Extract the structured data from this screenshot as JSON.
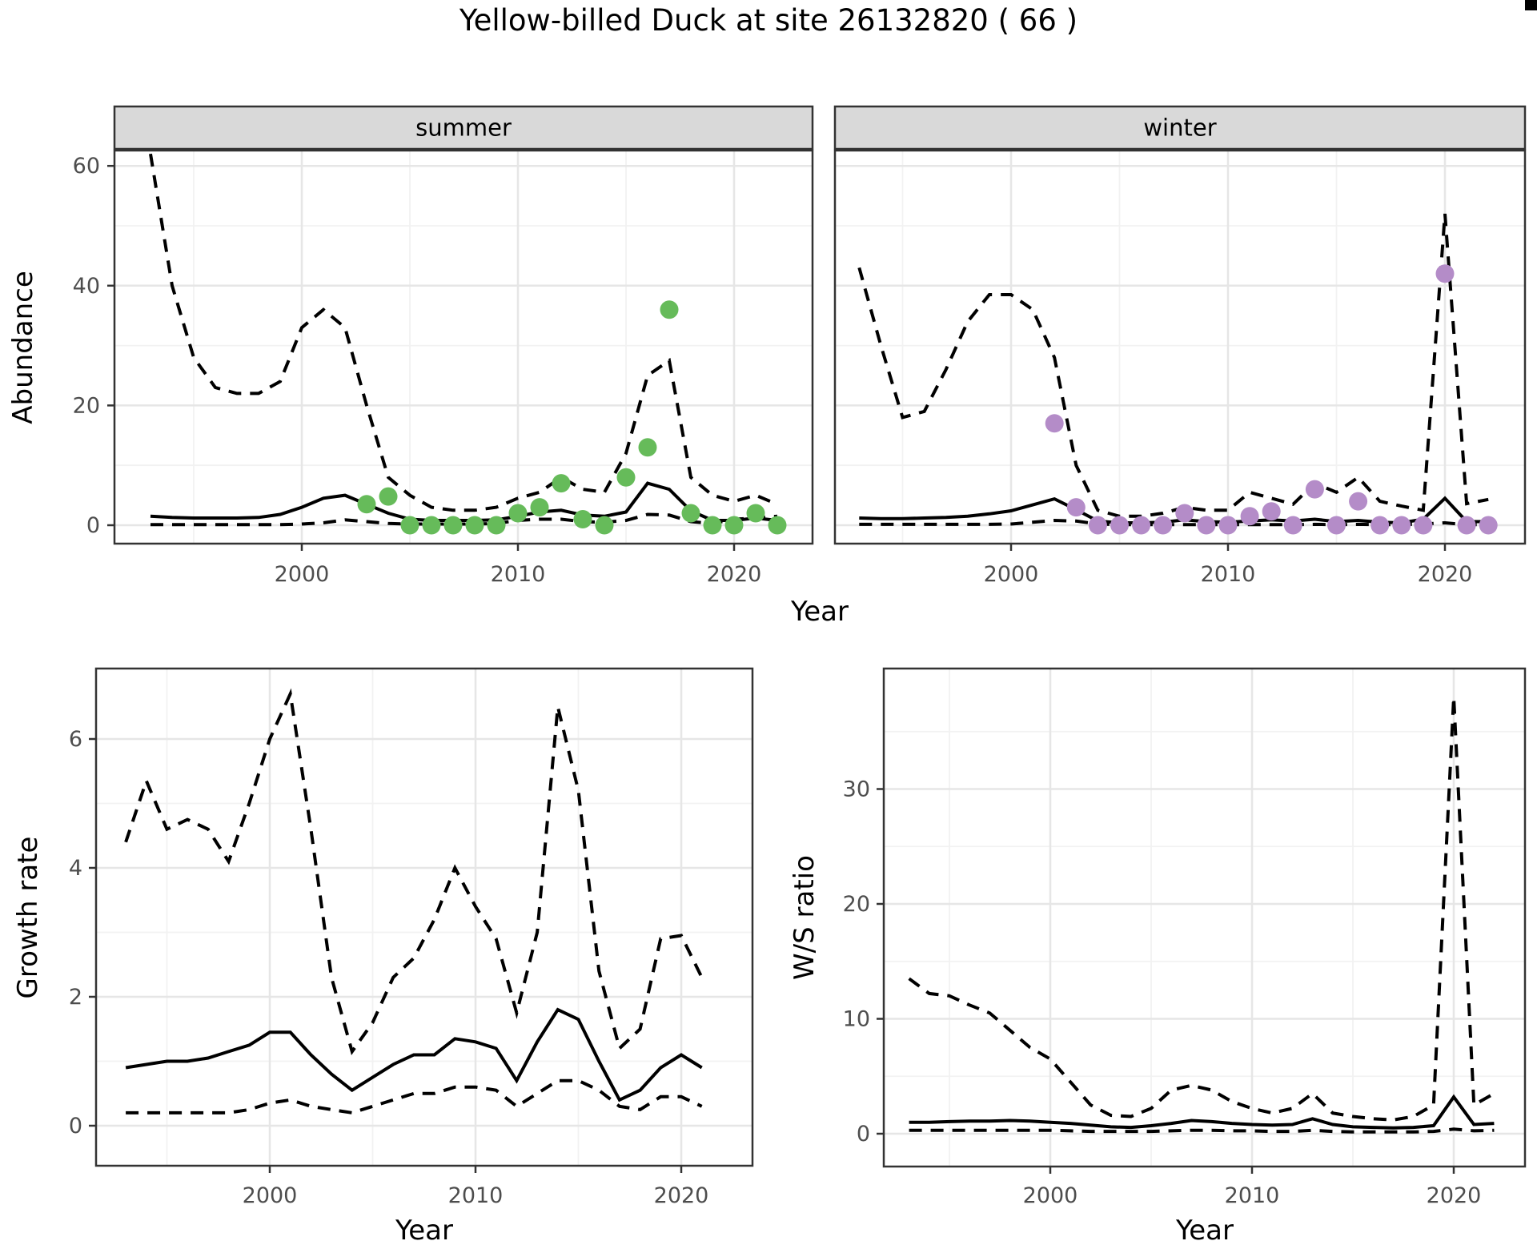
{
  "title": "Yellow-billed Duck at site 26132820 ( 66 )",
  "axis_labels": {
    "abundance": "Abundance",
    "year": "Year",
    "growth_rate": "Growth rate",
    "ws_ratio": "W/S ratio"
  },
  "facets": {
    "summer": "summer",
    "winter": "winter"
  },
  "colors": {
    "summer_point": "#66BB5A",
    "winter_point": "#B48CC8",
    "line": "#000000",
    "strip_bg": "#D9D9D9",
    "panel_border": "#333333",
    "grid_major": "#E6E6E6",
    "grid_minor": "#F2F2F2",
    "tick_label": "#4D4D4D"
  },
  "chart_data": [
    {
      "id": "abundance-summer",
      "type": "line",
      "facet_label": "summer",
      "ylabel": "Abundance",
      "xlabel": "Year",
      "x": [
        1993,
        1994,
        1995,
        1996,
        1997,
        1998,
        1999,
        2000,
        2001,
        2002,
        2003,
        2004,
        2005,
        2006,
        2007,
        2008,
        2009,
        2010,
        2011,
        2012,
        2013,
        2014,
        2015,
        2016,
        2017,
        2018,
        2019,
        2020,
        2021,
        2022
      ],
      "series": [
        {
          "name": "upper_95ci",
          "style": "dashed",
          "values": [
            62,
            40,
            28,
            23,
            22,
            22,
            24,
            33,
            36,
            33,
            20,
            8,
            5,
            3,
            2.5,
            2.5,
            3,
            4.5,
            5.5,
            8,
            6,
            5.5,
            12,
            25,
            27.5,
            8,
            5,
            4,
            5,
            3.5
          ]
        },
        {
          "name": "median",
          "style": "solid",
          "values": [
            1.5,
            1.3,
            1.2,
            1.2,
            1.2,
            1.3,
            1.8,
            3,
            4.5,
            5,
            3.5,
            2,
            1,
            0.8,
            0.8,
            0.8,
            0.9,
            1.5,
            2.2,
            2.5,
            1.7,
            1.5,
            2.2,
            7,
            6,
            2.4,
            0.8,
            0.8,
            1.2,
            0.8
          ]
        },
        {
          "name": "lower_95ci",
          "style": "dashed",
          "values": [
            0.1,
            0.1,
            0.1,
            0.1,
            0.1,
            0.1,
            0.1,
            0.2,
            0.4,
            0.9,
            0.6,
            0.3,
            0.2,
            0.2,
            0.2,
            0.2,
            0.3,
            0.8,
            1,
            1,
            0.6,
            0.5,
            0.8,
            1.8,
            1.7,
            0.6,
            0.3,
            1,
            1.2,
            1.5
          ]
        }
      ],
      "points": {
        "name": "observed-summer-counts",
        "color": "#66BB5A",
        "x": [
          2003,
          2004,
          2005,
          2006,
          2007,
          2008,
          2009,
          2010,
          2011,
          2012,
          2013,
          2014,
          2015,
          2016,
          2017,
          2018,
          2019,
          2020,
          2021,
          2022
        ],
        "y": [
          3.5,
          4.8,
          0,
          0,
          0,
          0,
          0,
          2,
          3,
          7,
          1,
          0,
          8,
          13,
          36,
          2,
          0,
          0,
          2,
          0
        ]
      },
      "yticks": [
        0,
        20,
        40,
        60
      ],
      "xticks": [
        2000,
        2010,
        2020
      ],
      "ylim": [
        0,
        62
      ],
      "grid": true,
      "legend": "none"
    },
    {
      "id": "abundance-winter",
      "type": "line",
      "facet_label": "winter",
      "ylabel": "Abundance",
      "xlabel": "Year",
      "x": [
        1993,
        1994,
        1995,
        1996,
        1997,
        1998,
        1999,
        2000,
        2001,
        2002,
        2003,
        2004,
        2005,
        2006,
        2007,
        2008,
        2009,
        2010,
        2011,
        2012,
        2013,
        2014,
        2015,
        2016,
        2017,
        2018,
        2019,
        2020,
        2021,
        2022
      ],
      "series": [
        {
          "name": "upper_95ci",
          "style": "dashed",
          "values": [
            43,
            30,
            18,
            19,
            26,
            34,
            38.5,
            38.5,
            36,
            28,
            10,
            2.5,
            1.5,
            1.5,
            2,
            3,
            2.5,
            2.5,
            5.5,
            4.5,
            3.5,
            7,
            5.5,
            8,
            4,
            3.2,
            2.5,
            52,
            3.6,
            4.3
          ]
        },
        {
          "name": "median",
          "style": "solid",
          "values": [
            1.2,
            1.1,
            1.1,
            1.2,
            1.3,
            1.5,
            1.9,
            2.4,
            3.4,
            4.4,
            2.6,
            0.7,
            0.4,
            0.4,
            0.5,
            0.9,
            0.6,
            0.5,
            0.7,
            0.9,
            0.7,
            1.0,
            0.6,
            0.8,
            0.5,
            0.4,
            1.0,
            4.5,
            0.6,
            0.6
          ]
        },
        {
          "name": "lower_95ci",
          "style": "dashed",
          "values": [
            0.15,
            0.15,
            0.15,
            0.15,
            0.15,
            0.15,
            0.15,
            0.2,
            0.5,
            0.8,
            0.7,
            0.2,
            0.1,
            0.1,
            0.1,
            0.1,
            0.1,
            0.1,
            0.1,
            0.1,
            0.1,
            0.15,
            0.1,
            0.15,
            0.1,
            0.1,
            0.2,
            0.4,
            0.1,
            0.1
          ]
        }
      ],
      "points": {
        "name": "observed-winter-counts",
        "color": "#B48CC8",
        "x": [
          2002,
          2003,
          2004,
          2005,
          2006,
          2007,
          2008,
          2009,
          2010,
          2011,
          2012,
          2013,
          2014,
          2015,
          2016,
          2017,
          2018,
          2019,
          2020,
          2021,
          2022
        ],
        "y": [
          17,
          3,
          0,
          0,
          0,
          0,
          2,
          0,
          0,
          1.5,
          2.3,
          0,
          6,
          0,
          4,
          0,
          0,
          0,
          42,
          0,
          0
        ]
      },
      "yticks": [
        0,
        20,
        40,
        60
      ],
      "xticks": [
        2000,
        2010,
        2020
      ],
      "ylim": [
        0,
        62
      ],
      "grid": true,
      "legend": "none"
    },
    {
      "id": "growth-rate",
      "type": "line",
      "facet_label": null,
      "ylabel": "Growth rate",
      "xlabel": "Year",
      "x": [
        1993,
        1994,
        1995,
        1996,
        1997,
        1998,
        1999,
        2000,
        2001,
        2002,
        2003,
        2004,
        2005,
        2006,
        2007,
        2008,
        2009,
        2010,
        2011,
        2012,
        2013,
        2014,
        2015,
        2016,
        2017,
        2018,
        2019,
        2020,
        2021
      ],
      "series": [
        {
          "name": "upper_95ci",
          "style": "dashed",
          "values": [
            4.4,
            5.35,
            4.6,
            4.75,
            4.6,
            4.1,
            5.0,
            6.0,
            6.7,
            4.6,
            2.3,
            1.15,
            1.6,
            2.3,
            2.6,
            3.2,
            4.0,
            3.4,
            2.9,
            1.75,
            3.0,
            6.5,
            5.2,
            2.4,
            1.2,
            1.5,
            2.9,
            2.95,
            2.3
          ]
        },
        {
          "name": "median",
          "style": "solid",
          "values": [
            0.9,
            0.95,
            1.0,
            1.0,
            1.05,
            1.15,
            1.25,
            1.45,
            1.45,
            1.1,
            0.8,
            0.55,
            0.75,
            0.95,
            1.1,
            1.1,
            1.35,
            1.3,
            1.2,
            0.7,
            1.3,
            1.8,
            1.65,
            1.0,
            0.4,
            0.55,
            0.9,
            1.1,
            0.9
          ]
        },
        {
          "name": "lower_95ci",
          "style": "dashed",
          "values": [
            0.2,
            0.2,
            0.2,
            0.2,
            0.2,
            0.2,
            0.25,
            0.35,
            0.4,
            0.3,
            0.25,
            0.2,
            0.3,
            0.4,
            0.5,
            0.5,
            0.6,
            0.6,
            0.55,
            0.3,
            0.5,
            0.7,
            0.7,
            0.55,
            0.3,
            0.25,
            0.45,
            0.45,
            0.3
          ]
        }
      ],
      "points": null,
      "yticks": [
        0,
        2,
        4,
        6
      ],
      "xticks": [
        2000,
        2010,
        2020
      ],
      "ylim": [
        -0.2,
        7.1
      ],
      "grid": true,
      "legend": "none"
    },
    {
      "id": "ws-ratio",
      "type": "line",
      "facet_label": null,
      "ylabel": "W/S ratio",
      "xlabel": "Year",
      "x": [
        1993,
        1994,
        1995,
        1996,
        1997,
        1998,
        1999,
        2000,
        2001,
        2002,
        2003,
        2004,
        2005,
        2006,
        2007,
        2008,
        2009,
        2010,
        2011,
        2012,
        2013,
        2014,
        2015,
        2016,
        2017,
        2018,
        2019,
        2020,
        2021,
        2022
      ],
      "series": [
        {
          "name": "upper_95ci",
          "style": "dashed",
          "values": [
            13.5,
            12.2,
            12,
            11.2,
            10.5,
            9,
            7.5,
            6.5,
            4.5,
            2.5,
            1.6,
            1.5,
            2.2,
            3.8,
            4.2,
            3.8,
            2.8,
            2.2,
            1.8,
            2.2,
            3.5,
            1.8,
            1.5,
            1.3,
            1.2,
            1.5,
            2.5,
            38,
            2.5,
            3.5
          ]
        },
        {
          "name": "median",
          "style": "solid",
          "values": [
            1.0,
            1.0,
            1.05,
            1.1,
            1.1,
            1.15,
            1.1,
            1.0,
            0.9,
            0.75,
            0.6,
            0.55,
            0.7,
            0.9,
            1.15,
            1.05,
            0.9,
            0.8,
            0.75,
            0.8,
            1.3,
            0.8,
            0.6,
            0.55,
            0.5,
            0.55,
            0.7,
            3.2,
            0.8,
            0.9
          ]
        },
        {
          "name": "lower_95ci",
          "style": "dashed",
          "values": [
            0.3,
            0.3,
            0.3,
            0.3,
            0.3,
            0.3,
            0.3,
            0.3,
            0.25,
            0.2,
            0.2,
            0.2,
            0.2,
            0.25,
            0.3,
            0.3,
            0.25,
            0.25,
            0.2,
            0.2,
            0.3,
            0.2,
            0.15,
            0.15,
            0.15,
            0.15,
            0.2,
            0.4,
            0.25,
            0.3
          ]
        }
      ],
      "points": null,
      "yticks": [
        0,
        10,
        20,
        30
      ],
      "xticks": [
        2000,
        2010,
        2020
      ],
      "ylim": [
        -0.5,
        38.5
      ],
      "grid": true,
      "legend": "none"
    }
  ]
}
